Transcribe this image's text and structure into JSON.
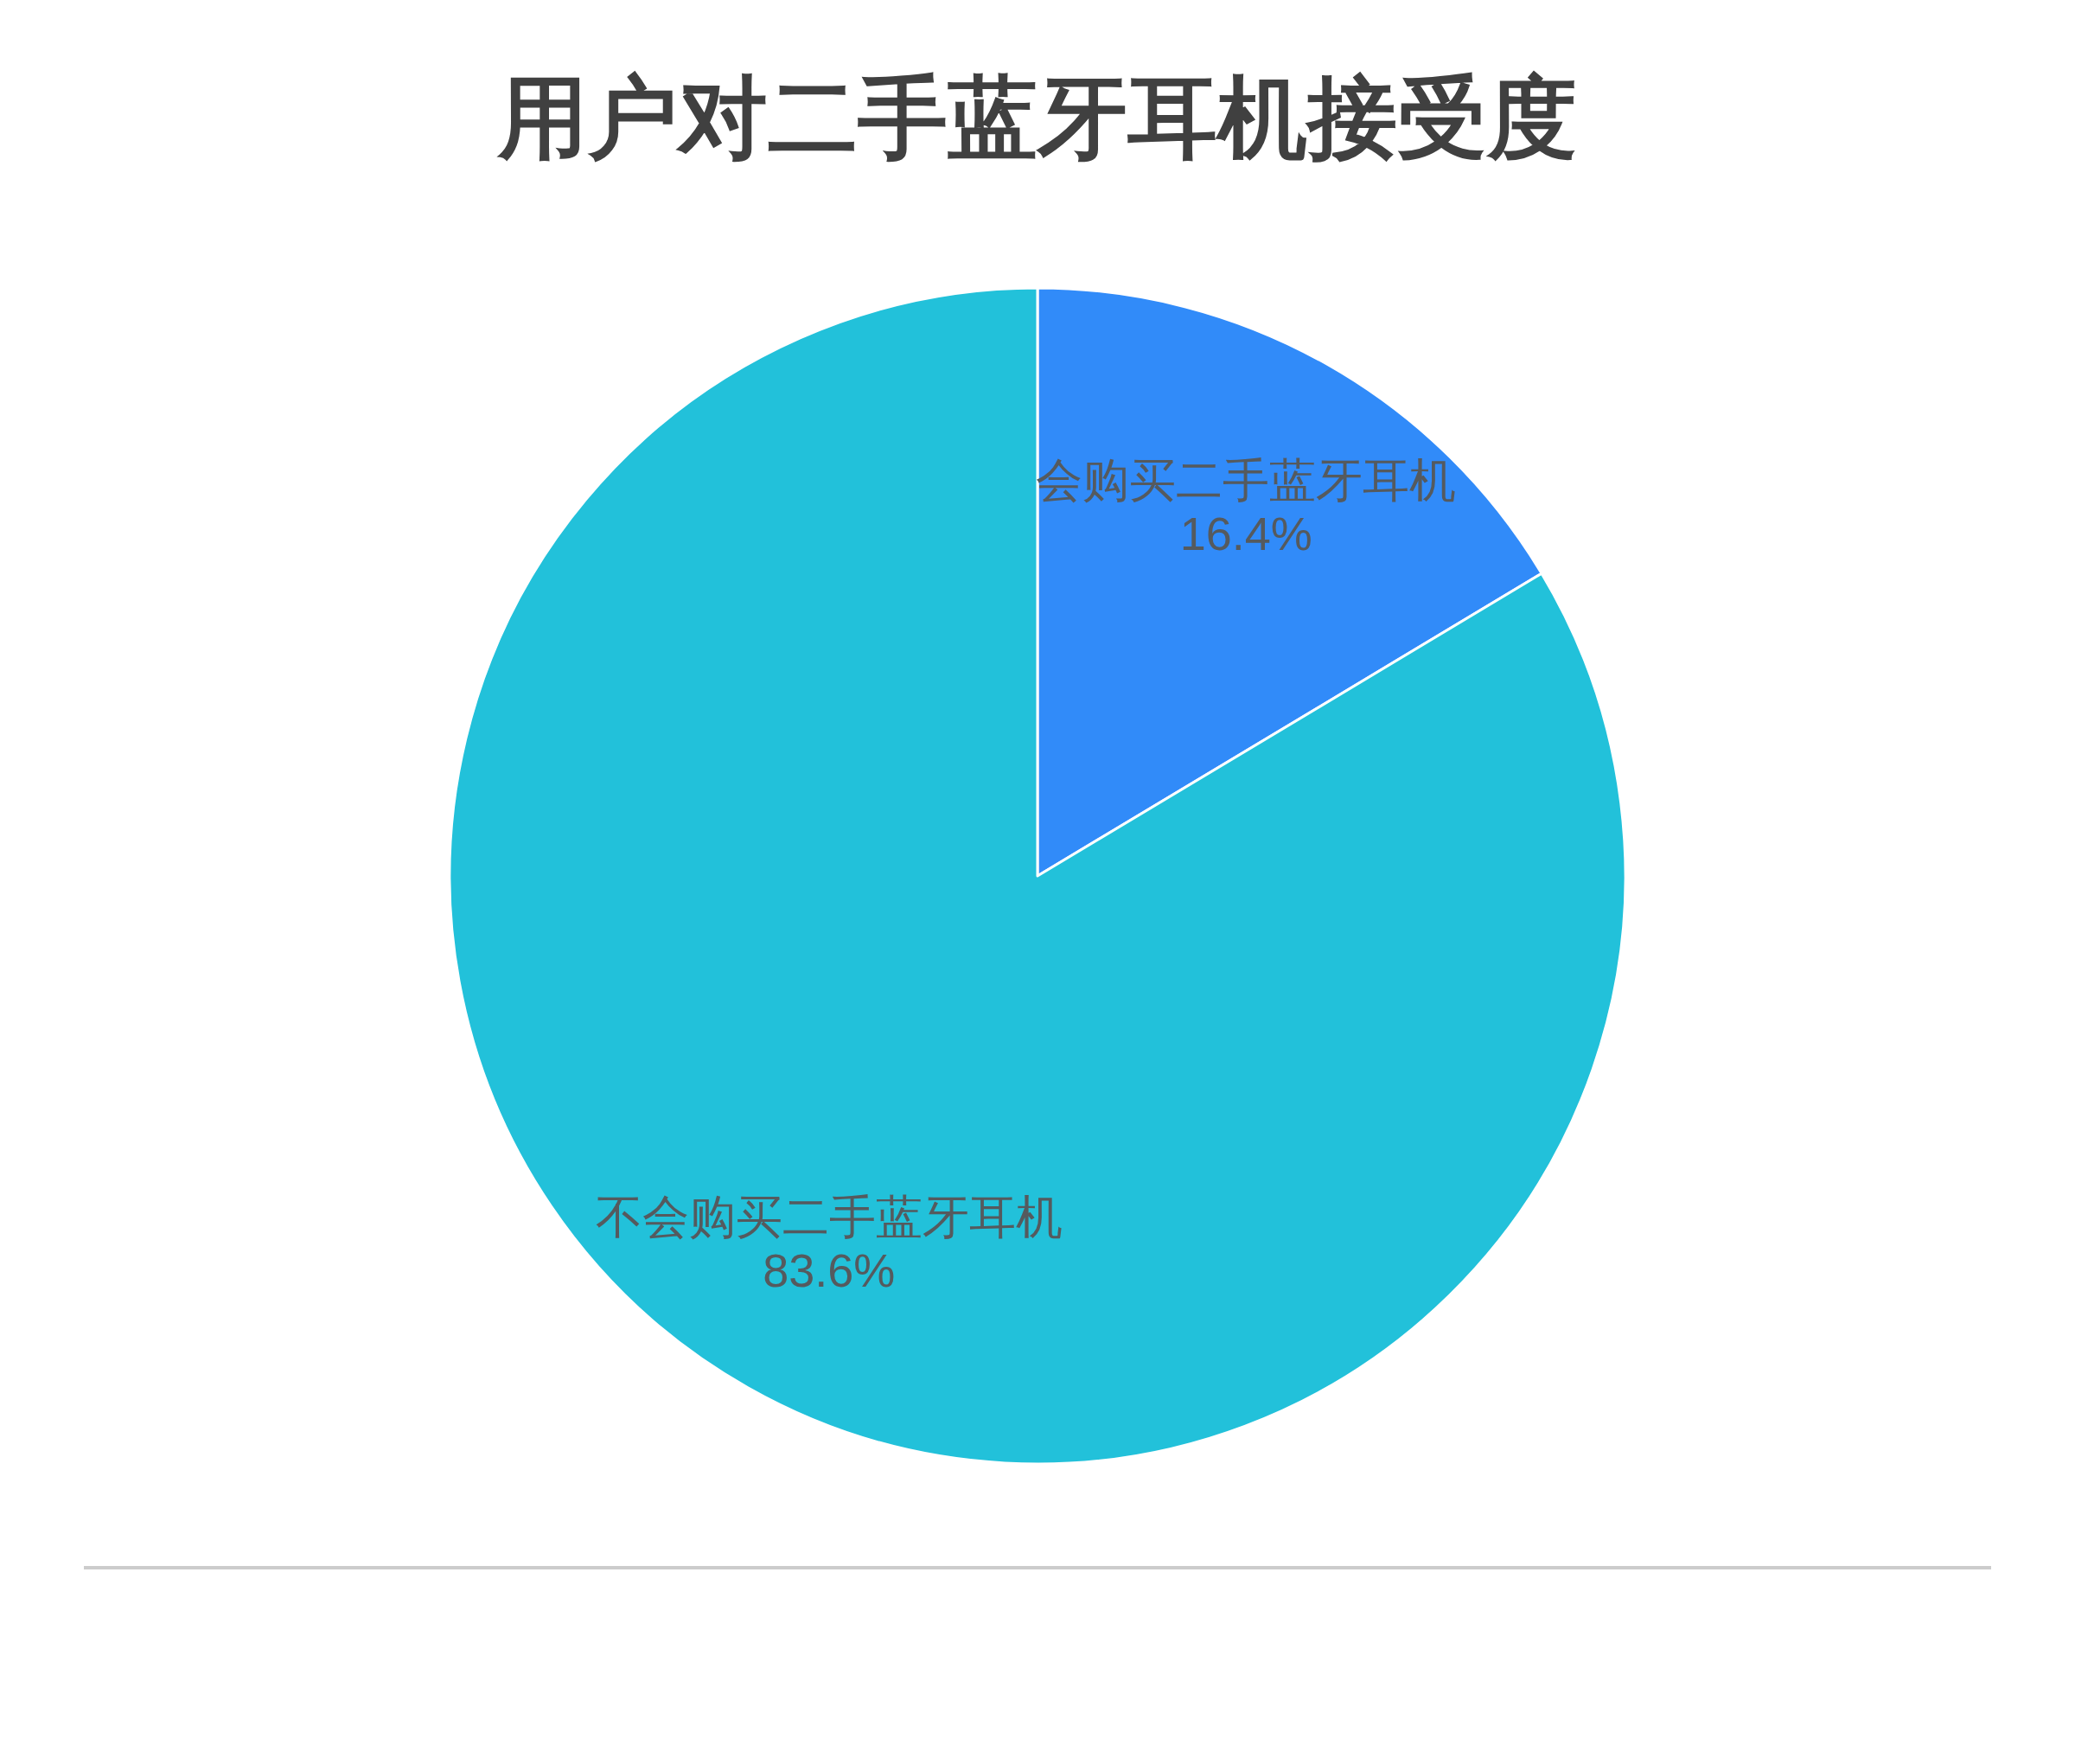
{
  "chart_data": {
    "type": "pie",
    "title": "用户对二手蓝牙耳机接受度",
    "categories": [
      "会购买二手蓝牙耳机",
      "不会购买二手蓝牙耳机"
    ],
    "values": [
      16.4,
      83.6
    ],
    "colors": [
      "#318bf9",
      "#22c1da"
    ],
    "value_labels": [
      "16.4%",
      "83.6%"
    ]
  }
}
